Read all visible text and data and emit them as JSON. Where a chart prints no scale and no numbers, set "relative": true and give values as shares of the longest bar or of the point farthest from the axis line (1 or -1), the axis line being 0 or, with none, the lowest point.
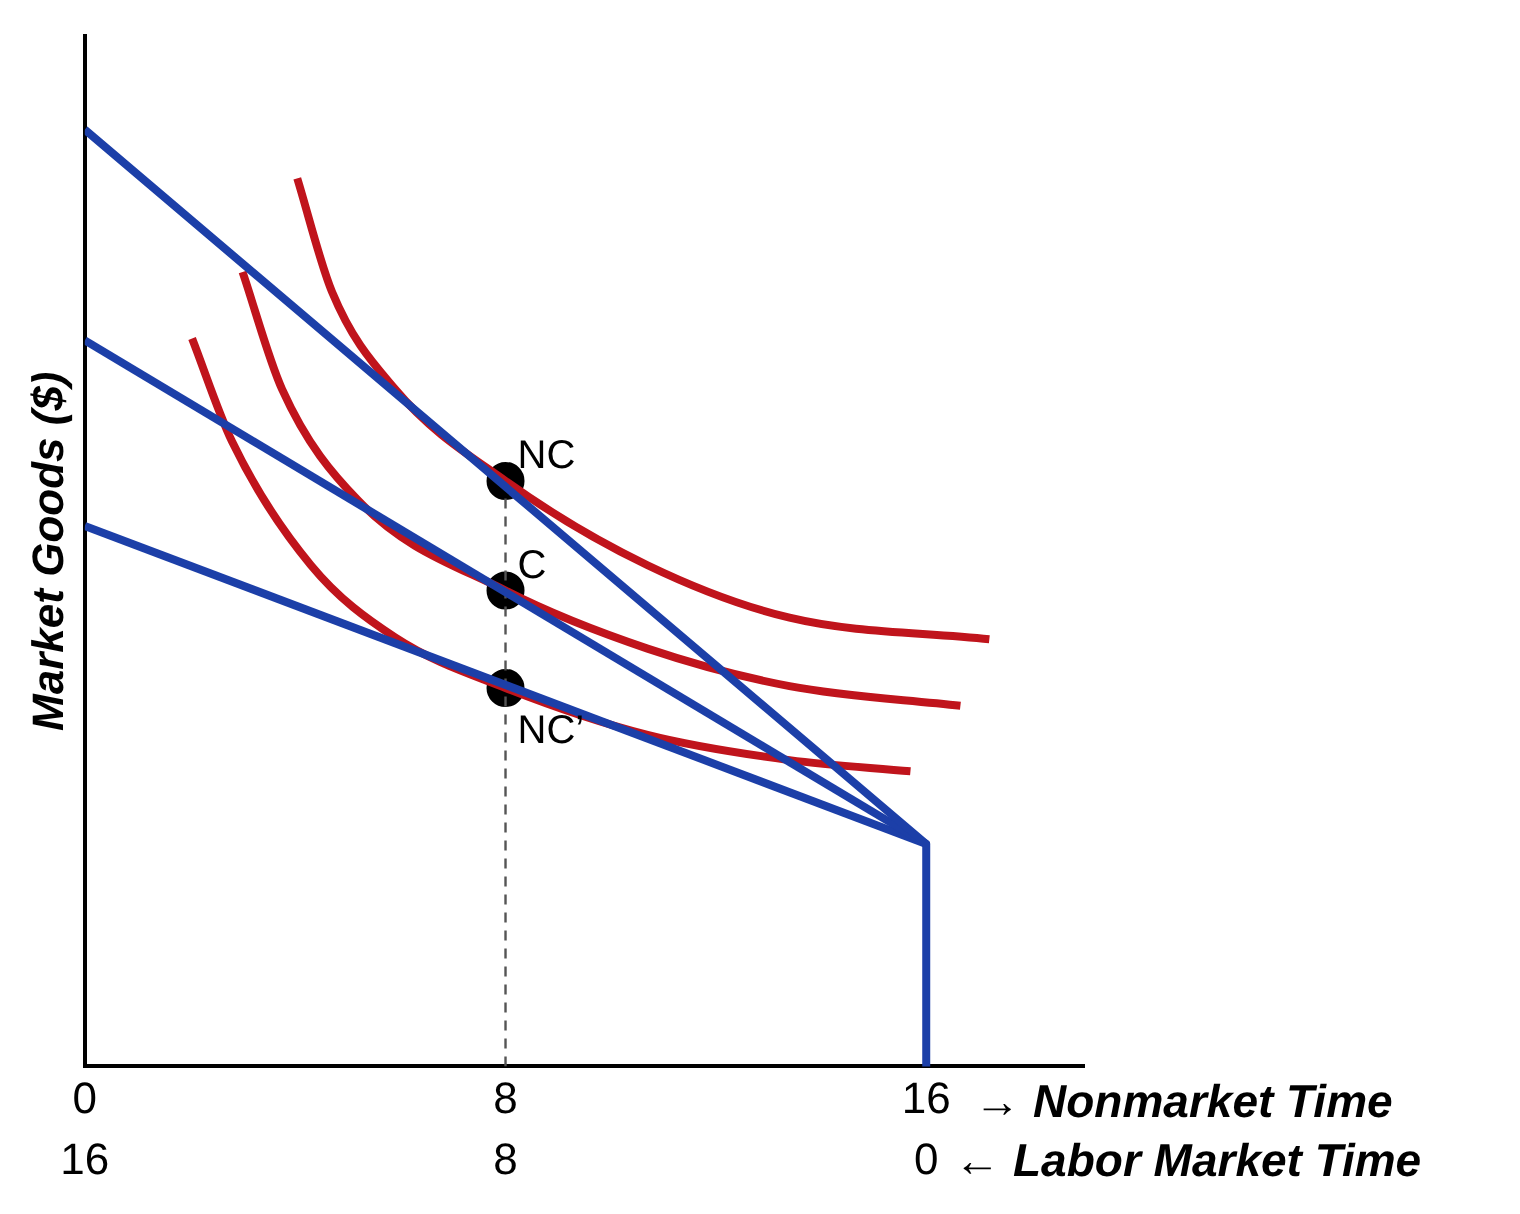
{
  "chart_data": {
    "type": "line",
    "relative": true,
    "ylabel": "Market Goods ($)",
    "xlabel": "→ Nonmarket Time",
    "x2label": "← Labor Market Time",
    "xlim": [
      0,
      19
    ],
    "xticks": [
      0,
      8,
      16
    ],
    "x2lim": [
      16,
      -3
    ],
    "x2ticks": [
      16,
      8,
      0
    ],
    "grid": false,
    "legend": false,
    "marker": "none",
    "series": [
      {
        "color": "#1c3fa8",
        "x": [
          0,
          16,
          16
        ],
        "values": [
          1,
          0.2375,
          0
        ]
      },
      {
        "color": "#1c3fa8",
        "x": [
          0,
          16
        ],
        "values": [
          0.775,
          0.2375
        ]
      },
      {
        "color": "#1c3fa8",
        "x": [
          0,
          16
        ],
        "values": [
          0.577,
          0.2375
        ]
      },
      {
        "color": "#c0141c",
        "x": [
          4.04,
          4.7,
          5.9,
          8,
          10.7,
          13.4,
          17.2
        ],
        "values": [
          0.948,
          0.827,
          0.723,
          0.625,
          0.535,
          0.479,
          0.456
        ]
      },
      {
        "color": "#c0141c",
        "x": [
          3.0,
          3.75,
          5.2,
          8,
          10.7,
          13.4,
          16.65
        ],
        "values": [
          0.848,
          0.723,
          0.604,
          0.508,
          0.446,
          0.406,
          0.385
        ]
      },
      {
        "color": "#c0141c",
        "x": [
          2.04,
          2.8,
          4.3,
          5.9,
          8,
          10.7,
          13.4,
          15.7
        ],
        "values": [
          0.777,
          0.667,
          0.535,
          0.458,
          0.404,
          0.354,
          0.327,
          0.315
        ]
      },
      {
        "color": "#555555",
        "x": [
          8,
          8
        ],
        "values": [
          0,
          0.625
        ],
        "line_style": "dashed"
      },
      {
        "type": "scatter",
        "color": "#000000",
        "marker": "circle",
        "x": [
          8,
          8,
          8
        ],
        "values": [
          0.625,
          0.508,
          0.404
        ]
      }
    ],
    "annotations": [
      "NC",
      "C",
      "NC’"
    ]
  }
}
